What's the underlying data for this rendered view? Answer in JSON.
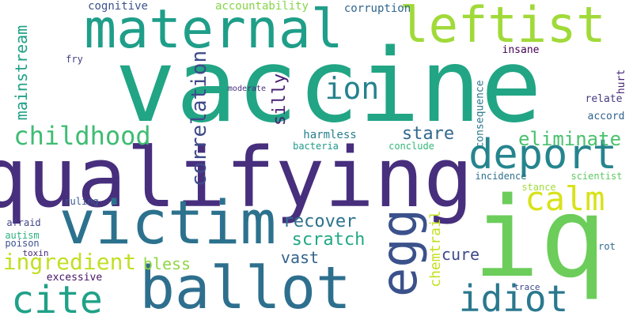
{
  "words": [
    {
      "text": "vaccine",
      "color": "#21a585"
    },
    {
      "text": "qualifying",
      "color": "#472f7d"
    },
    {
      "text": "iq",
      "color": "#6ccd5a"
    },
    {
      "text": "ballot",
      "color": "#2e6f8e"
    },
    {
      "text": "victim",
      "color": "#2c728e"
    },
    {
      "text": "maternal",
      "color": "#1f9e89"
    },
    {
      "text": "leftist",
      "color": "#a0da39"
    },
    {
      "text": "egg",
      "color": "#3b518b"
    },
    {
      "text": "deport",
      "color": "#25858e"
    },
    {
      "text": "cite",
      "color": "#1fa187"
    },
    {
      "text": "idiot",
      "color": "#2a788e"
    },
    {
      "text": "calm",
      "color": "#d8e219"
    },
    {
      "text": "ion",
      "color": "#26828e"
    },
    {
      "text": "childhood",
      "color": "#3fbc73"
    },
    {
      "text": "correlation",
      "color": "#3e4a89"
    },
    {
      "text": "ingredient",
      "color": "#c2df23"
    },
    {
      "text": "eliminate",
      "color": "#4ac16d"
    },
    {
      "text": "mainstream",
      "color": "#1fa187"
    },
    {
      "text": "stare",
      "color": "#31688e"
    },
    {
      "text": "recover",
      "color": "#2c728e"
    },
    {
      "text": "scratch",
      "color": "#22a884"
    },
    {
      "text": "chemtrail",
      "color": "#c5e021"
    },
    {
      "text": "silly",
      "color": "#482173"
    },
    {
      "text": "bless",
      "color": "#90d743"
    },
    {
      "text": "vast",
      "color": "#33638d"
    },
    {
      "text": "cure",
      "color": "#3e4989"
    },
    {
      "text": "harmless",
      "color": "#277f8e"
    },
    {
      "text": "consequence",
      "color": "#2a788e"
    },
    {
      "text": "accountability",
      "color": "#86d549"
    },
    {
      "text": "corruption",
      "color": "#31668e"
    },
    {
      "text": "cognitive",
      "color": "#3b528b"
    },
    {
      "text": "insane",
      "color": "#440154"
    },
    {
      "text": "relate",
      "color": "#443983"
    },
    {
      "text": "accord",
      "color": "#32648e"
    },
    {
      "text": "hurt",
      "color": "#482374"
    },
    {
      "text": "scientist",
      "color": "#5ec962"
    },
    {
      "text": "incidence",
      "color": "#2d708e"
    },
    {
      "text": "stance",
      "color": "#9fda3a"
    },
    {
      "text": "conclude",
      "color": "#35b779"
    },
    {
      "text": "bacteria",
      "color": "#1f9a8a"
    },
    {
      "text": "fry",
      "color": "#433e85"
    },
    {
      "text": "moderate",
      "color": "#46307e"
    },
    {
      "text": "ruling",
      "color": "#38598c"
    },
    {
      "text": "afraid",
      "color": "#414487"
    },
    {
      "text": "autism",
      "color": "#2db27d"
    },
    {
      "text": "poison",
      "color": "#3b528b"
    },
    {
      "text": "toxin",
      "color": "#482878"
    },
    {
      "text": "excessive",
      "color": "#471365"
    },
    {
      "text": "trace",
      "color": "#3e4a89"
    },
    {
      "text": "rot",
      "color": "#2f6c8e"
    }
  ]
}
